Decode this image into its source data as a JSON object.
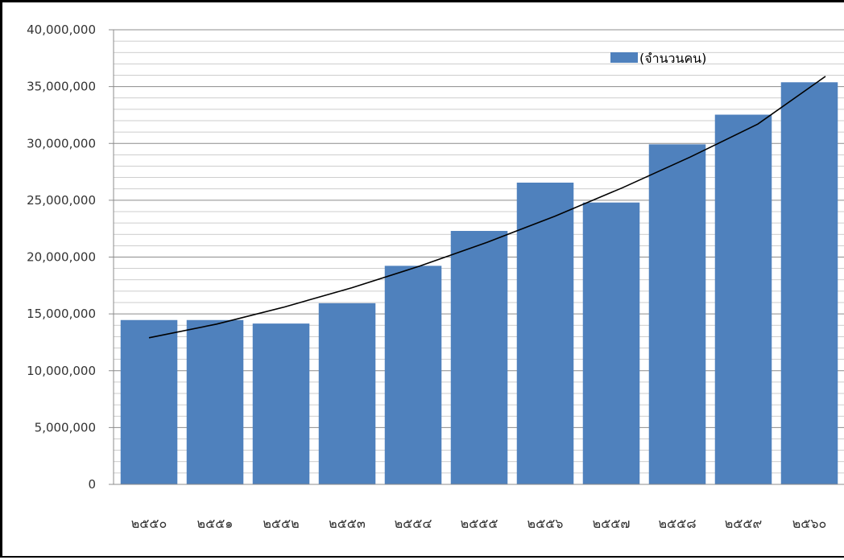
{
  "chart_data": {
    "type": "bar",
    "title": "",
    "xlabel": "",
    "ylabel": "",
    "categories": [
      "๒๕๕๐",
      "๒๕๕๑",
      "๒๕๕๒",
      "๒๕๕๓",
      "๒๕๕๔",
      "๒๕๕๕",
      "๒๕๕๖",
      "๒๕๕๗",
      "๒๕๕๘",
      "๒๕๕๙",
      "๒๕๖๐"
    ],
    "series": [
      {
        "name": "(จำนวนคน)",
        "values": [
          14460000,
          14460000,
          14150000,
          15940000,
          19230000,
          22300000,
          26550000,
          24800000,
          29920000,
          32530000,
          35380000
        ],
        "color": "#4f81bd"
      }
    ],
    "trendline": {
      "type": "polynomial",
      "color": "#000000",
      "values": [
        12900000,
        14100000,
        15600000,
        17300000,
        19200000,
        21300000,
        23600000,
        26100000,
        28800000,
        31700000,
        35900000
      ]
    },
    "ylim": [
      0,
      40000000
    ],
    "yticks": [
      "0",
      "5,000,000",
      "10,000,000",
      "15,000,000",
      "20,000,000",
      "25,000,000",
      "30,000,000",
      "35,000,000",
      "40,000,000"
    ],
    "ytick_values": [
      0,
      5000000,
      10000000,
      15000000,
      20000000,
      25000000,
      30000000,
      35000000,
      40000000
    ],
    "minor_grid_step": 1000000,
    "grid": true,
    "legend_position": "top-right"
  }
}
